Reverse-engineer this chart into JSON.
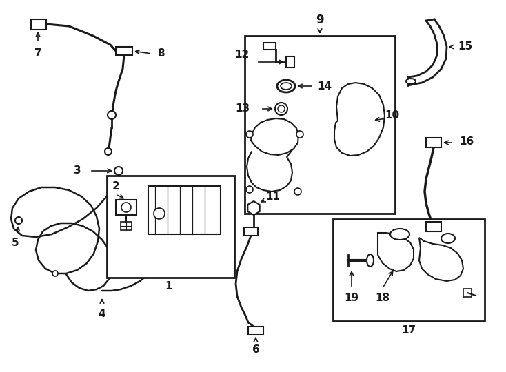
{
  "bg_color": "#ffffff",
  "line_color": "#1a1a1a",
  "label_color": "#000000",
  "fig_width": 7.34,
  "fig_height": 5.4,
  "dpi": 100
}
